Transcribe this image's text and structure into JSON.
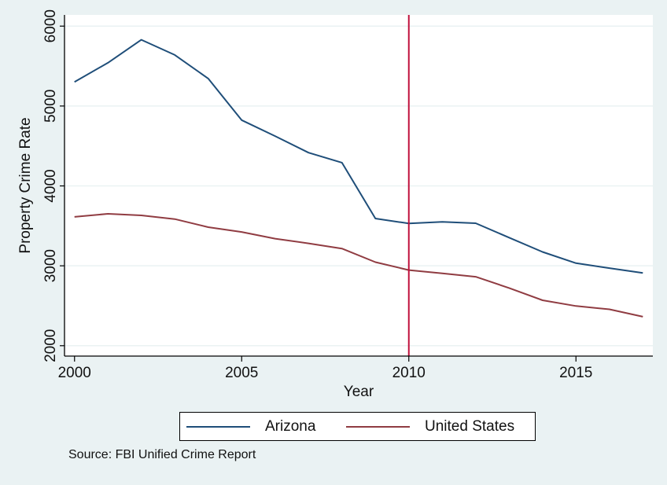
{
  "chart_data": {
    "type": "line",
    "title": "",
    "xlabel": "Year",
    "ylabel": "Property Crime Rate",
    "xlim": [
      1999.7,
      2017.3
    ],
    "ylim": [
      1870,
      6140
    ],
    "x_ticks": [
      2000,
      2005,
      2010,
      2015
    ],
    "y_ticks": [
      2000,
      3000,
      4000,
      5000,
      6000
    ],
    "grid": "horizontal",
    "x": [
      2000,
      2001,
      2002,
      2003,
      2004,
      2005,
      2006,
      2007,
      2008,
      2009,
      2010,
      2011,
      2012,
      2013,
      2014,
      2015,
      2016,
      2017
    ],
    "series": [
      {
        "name": "Arizona",
        "color": "#1f4e79",
        "values": [
          5302,
          5541,
          5829,
          5639,
          5344,
          4824,
          4624,
          4416,
          4291,
          3592,
          3530,
          3549,
          3533,
          3353,
          3174,
          3033,
          2971,
          2910
        ]
      },
      {
        "name": "United States",
        "color": "#903c42",
        "values": [
          3612,
          3651,
          3631,
          3585,
          3484,
          3424,
          3340,
          3281,
          3216,
          3046,
          2946,
          2906,
          2863,
          2722,
          2569,
          2497,
          2455,
          2363
        ]
      }
    ],
    "reference_line": {
      "x": 2010,
      "color": "#c0103c"
    },
    "legend": {
      "position": "bottom",
      "entries": [
        "Arizona",
        "United States"
      ]
    },
    "note": "Source: FBI Unified Crime Report"
  }
}
